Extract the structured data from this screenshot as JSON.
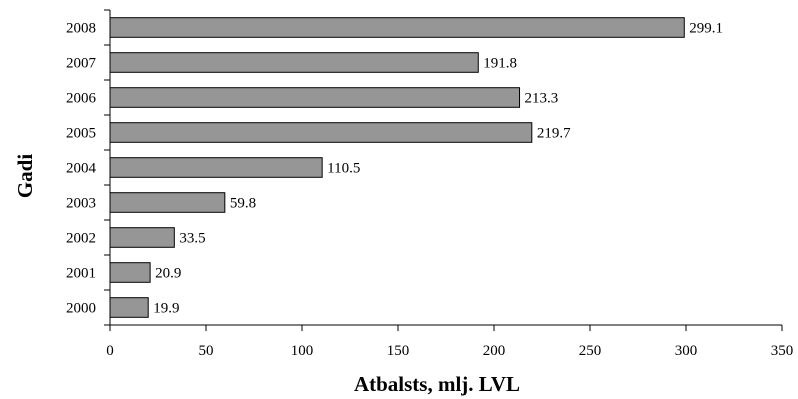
{
  "chart_data": {
    "type": "bar",
    "orientation": "horizontal",
    "title": "",
    "categories": [
      "2008",
      "2007",
      "2006",
      "2005",
      "2004",
      "2003",
      "2002",
      "2001",
      "2000"
    ],
    "values": [
      299.1,
      191.8,
      213.3,
      219.7,
      110.5,
      59.8,
      33.5,
      20.9,
      19.9
    ],
    "value_labels": [
      "299.1",
      "191.8",
      "213.3",
      "219.7",
      "110.5",
      "59.8",
      "33.5",
      "20.9",
      "19.9"
    ],
    "xlabel": "Atbalsts, mlj. LVL",
    "ylabel": "Gadi",
    "xlim": [
      0,
      350
    ],
    "xticks": [
      "0",
      "50",
      "100",
      "150",
      "200",
      "250",
      "300",
      "350"
    ],
    "grid": false,
    "bar_color": "#969696",
    "bar_edge_color": "#000000"
  }
}
